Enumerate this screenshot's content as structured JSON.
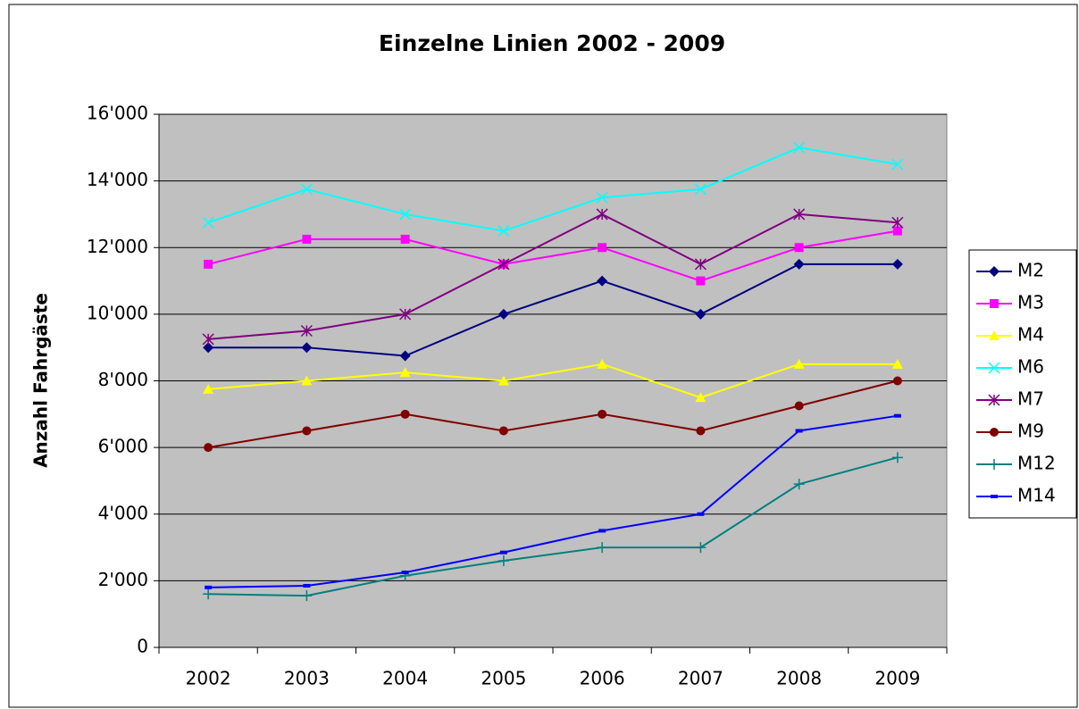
{
  "chart_data": {
    "type": "line",
    "title": "Einzelne Linien 2002 - 2009",
    "y_label": "Anzahl Fahrgäste",
    "categories": [
      "2002",
      "2003",
      "2004",
      "2005",
      "2006",
      "2007",
      "2008",
      "2009"
    ],
    "series": [
      {
        "name": "M2",
        "color": "#000080",
        "marker": "diamond",
        "values": [
          9000,
          9000,
          8750,
          10000,
          11000,
          10000,
          11500,
          11500
        ]
      },
      {
        "name": "M3",
        "color": "#ff00ff",
        "marker": "square",
        "values": [
          11500,
          12250,
          12250,
          11500,
          12000,
          11000,
          12000,
          12500
        ]
      },
      {
        "name": "M4",
        "color": "#ffff00",
        "marker": "triangle",
        "values": [
          7750,
          8000,
          8250,
          8000,
          8500,
          7500,
          8500,
          8500
        ]
      },
      {
        "name": "M6",
        "color": "#00ffff",
        "marker": "x",
        "values": [
          12750,
          13750,
          13000,
          12500,
          13500,
          13750,
          15000,
          14500
        ]
      },
      {
        "name": "M7",
        "color": "#800080",
        "marker": "star",
        "values": [
          9250,
          9500,
          10000,
          11500,
          13000,
          11500,
          13000,
          12750
        ]
      },
      {
        "name": "M9",
        "color": "#800000",
        "marker": "circle",
        "values": [
          6000,
          6500,
          7000,
          6500,
          7000,
          6500,
          7250,
          8000
        ]
      },
      {
        "name": "M12",
        "color": "#008080",
        "marker": "plus",
        "values": [
          1600,
          1550,
          2150,
          2600,
          3000,
          3000,
          4900,
          5700
        ]
      },
      {
        "name": "M14",
        "color": "#0000ff",
        "marker": "dash",
        "values": [
          1800,
          1850,
          2250,
          2850,
          3500,
          4000,
          6500,
          6950
        ]
      }
    ],
    "ylim": [
      0,
      16000
    ],
    "yticks": [
      0,
      {
        "value": 2000,
        "label": "2'000"
      },
      {
        "value": 4000,
        "label": "4'000"
      },
      {
        "value": 6000,
        "label": "6'000"
      },
      {
        "value": 8000,
        "label": "8'000"
      },
      {
        "value": 10000,
        "label": "10'000"
      },
      {
        "value": 12000,
        "label": "12'000"
      },
      {
        "value": 14000,
        "label": "14'000"
      },
      {
        "value": 16000,
        "label": "16'000"
      }
    ],
    "grid": true,
    "plot_background": "#c0c0c0",
    "legend": "right"
  }
}
